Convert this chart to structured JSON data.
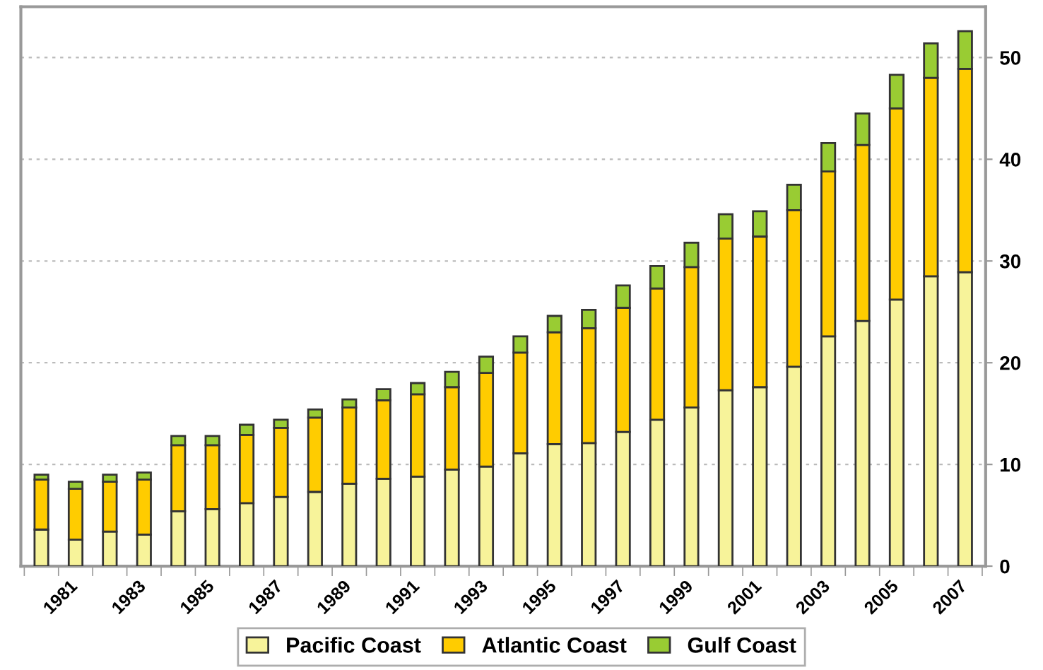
{
  "chart_data": {
    "type": "bar",
    "stacked": true,
    "categories": [
      null,
      "1981",
      null,
      "1983",
      null,
      "1985",
      null,
      "1987",
      null,
      "1989",
      null,
      "1991",
      null,
      "1993",
      null,
      "1995",
      null,
      "1997",
      null,
      "1999",
      null,
      "2001",
      null,
      "2003",
      null,
      "2005",
      null,
      "2007"
    ],
    "series": [
      {
        "name": "Pacific Coast",
        "color": "#f7f39a",
        "values": [
          3.6,
          2.6,
          3.4,
          3.1,
          5.4,
          5.6,
          6.2,
          6.8,
          7.3,
          8.1,
          8.6,
          8.8,
          9.5,
          9.8,
          11.1,
          12.0,
          12.1,
          13.2,
          14.4,
          15.6,
          17.3,
          17.6,
          19.6,
          22.6,
          24.1,
          26.2,
          28.5,
          28.9
        ]
      },
      {
        "name": "Atlantic Coast",
        "color": "#ffcc00",
        "values": [
          4.9,
          5.0,
          4.9,
          5.4,
          6.5,
          6.3,
          6.7,
          6.8,
          7.3,
          7.5,
          7.7,
          8.1,
          8.1,
          9.2,
          9.9,
          11.0,
          11.3,
          12.2,
          12.9,
          13.8,
          14.9,
          14.8,
          15.4,
          16.2,
          17.3,
          18.8,
          19.5,
          20.0
        ]
      },
      {
        "name": "Gulf Coast",
        "color": "#99cc33",
        "values": [
          0.5,
          0.7,
          0.7,
          0.7,
          0.9,
          0.9,
          1.0,
          0.8,
          0.8,
          0.8,
          1.1,
          1.1,
          1.5,
          1.6,
          1.6,
          1.6,
          1.8,
          2.2,
          2.2,
          2.4,
          2.4,
          2.5,
          2.5,
          2.8,
          3.1,
          3.3,
          3.4,
          3.7
        ]
      }
    ],
    "ylim": [
      0,
      55
    ],
    "yticks": [
      0,
      10,
      20,
      30,
      40,
      50
    ],
    "grid": "y",
    "legend": "bottom"
  }
}
